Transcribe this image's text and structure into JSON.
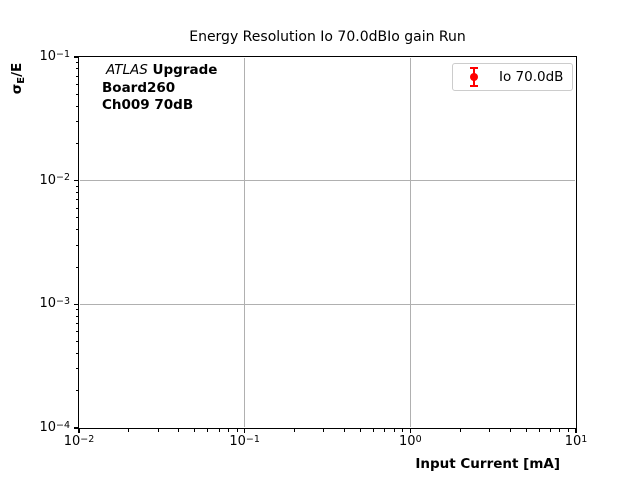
{
  "chart": {
    "title": "Energy Resolution Io 70.0dBIo gain Run",
    "xlabel": "Input Current [mA]",
    "ylabel_sigma": "σ",
    "ylabel_sub": "E",
    "ylabel_rest": "/E"
  },
  "annotation": {
    "experiment": "ATLAS",
    "line1_rest": "Upgrade",
    "line2": "Board260",
    "line3": "Ch009 70dB"
  },
  "legend": {
    "label": "Io 70.0dB",
    "marker_color": "#ff0000"
  },
  "colors": {
    "background": "#ffffff",
    "spine": "#000000",
    "grid": "#b0b0b0",
    "legend_border": "#cccccc",
    "marker": "#ff0000"
  },
  "chart_data": {
    "type": "scatter",
    "title": "Energy Resolution Io 70.0dBIo gain Run",
    "xlabel": "Input Current [mA]",
    "ylabel": "σ_E/E",
    "xscale": "log",
    "yscale": "log",
    "xlim": [
      0.01,
      10
    ],
    "ylim": [
      0.0001,
      0.1
    ],
    "x_tick_exponents": [
      -2,
      -1,
      0,
      1
    ],
    "y_tick_exponents": [
      -1,
      -2,
      -3,
      -4
    ],
    "grid": true,
    "legend_position": "upper right",
    "annotations": [
      "ATLAS Upgrade",
      "Board260",
      "Ch009 70dB"
    ],
    "series": [
      {
        "name": "Io 70.0dB",
        "color": "#ff0000",
        "marker": "circle-with-errorbars",
        "x": [],
        "y": []
      }
    ]
  }
}
